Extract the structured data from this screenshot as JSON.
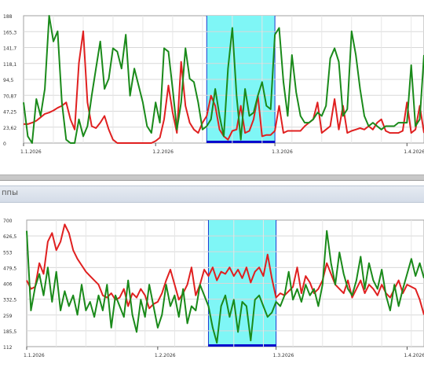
{
  "header": {
    "title": "ппы"
  },
  "chart_data": [
    {
      "type": "line",
      "x_tick_labels": [
        "1.1.2026",
        "1.2.2026",
        "1.3.2026",
        "1.4.2026"
      ],
      "x_ticks_day": [
        0,
        31,
        59,
        90
      ],
      "x_range_day": [
        0,
        94
      ],
      "y_tick_labels": [
        "188",
        "165,3",
        "141,7",
        "118,1",
        "94,5",
        "70,87",
        "47,25",
        "23,62",
        "0"
      ],
      "ylim": [
        0,
        188
      ],
      "grid": true,
      "highlight_day": [
        43,
        59
      ],
      "colors": {
        "red": "#e02020",
        "green": "#1a8a1a",
        "highlight": "#7ff6f6",
        "highlight_edge": "#1a3ad0"
      },
      "series": [
        {
          "color": "red",
          "values": [
            28,
            28,
            30,
            33,
            38,
            43,
            45,
            48,
            52,
            55,
            60,
            35,
            20,
            118,
            165,
            60,
            25,
            22,
            30,
            40,
            20,
            5,
            0,
            0,
            0,
            0,
            0,
            0,
            0,
            0,
            0,
            3,
            8,
            35,
            85,
            45,
            15,
            120,
            55,
            30,
            20,
            15,
            30,
            40,
            70,
            55,
            20,
            10,
            5,
            18,
            20,
            55,
            15,
            18,
            35,
            70,
            10,
            12,
            12,
            18,
            55,
            15,
            18,
            18,
            18,
            18,
            25,
            30,
            35,
            60,
            15,
            20,
            25,
            65,
            20,
            55,
            15,
            18,
            20,
            22,
            20,
            25,
            20,
            30,
            35,
            18,
            15,
            15,
            15,
            18,
            60,
            15,
            20,
            55,
            15
          ]
        },
        {
          "color": "green",
          "values": [
            60,
            10,
            0,
            65,
            40,
            80,
            188,
            150,
            165,
            60,
            5,
            0,
            0,
            35,
            10,
            25,
            70,
            110,
            150,
            80,
            95,
            140,
            135,
            110,
            160,
            70,
            110,
            85,
            60,
            25,
            15,
            60,
            30,
            140,
            135,
            80,
            20,
            60,
            140,
            95,
            90,
            60,
            20,
            25,
            35,
            80,
            40,
            10,
            110,
            170,
            70,
            5,
            80,
            40,
            45,
            70,
            90,
            55,
            50,
            160,
            170,
            90,
            40,
            130,
            75,
            40,
            30,
            30,
            35,
            45,
            40,
            55,
            125,
            140,
            120,
            40,
            50,
            165,
            130,
            80,
            40,
            25,
            30,
            25,
            20,
            25,
            25,
            25,
            30,
            30,
            30,
            115,
            25,
            35,
            130
          ]
        }
      ]
    },
    {
      "type": "line",
      "x_tick_labels": [
        "1.1.2026",
        "1.2.2026",
        "1.3.2026",
        "1.4.2026"
      ],
      "x_ticks_day": [
        0,
        31,
        59,
        90
      ],
      "x_range_day": [
        0,
        94
      ],
      "y_tick_labels": [
        "700",
        "626,5",
        "553",
        "479,5",
        "406",
        "332,5",
        "259",
        "185,5",
        "112"
      ],
      "ylim": [
        112,
        700
      ],
      "grid": true,
      "highlight_day": [
        43,
        59
      ],
      "colors": {
        "red": "#e02020",
        "green": "#1a8a1a",
        "highlight": "#7ff6f6",
        "highlight_edge": "#1a3ad0"
      },
      "series": [
        {
          "color": "red",
          "values": [
            420,
            380,
            390,
            500,
            450,
            600,
            640,
            560,
            600,
            680,
            640,
            560,
            520,
            490,
            460,
            440,
            420,
            400,
            350,
            340,
            360,
            330,
            340,
            380,
            300,
            360,
            340,
            380,
            350,
            290,
            310,
            320,
            360,
            420,
            470,
            400,
            330,
            360,
            400,
            480,
            350,
            400,
            470,
            440,
            480,
            420,
            460,
            450,
            480,
            440,
            470,
            430,
            480,
            410,
            460,
            480,
            440,
            540,
            430,
            340,
            360,
            350,
            370,
            390,
            480,
            360,
            440,
            410,
            360,
            380,
            420,
            500,
            450,
            400,
            380,
            360,
            420,
            340,
            380,
            420,
            360,
            400,
            380,
            350,
            400,
            360,
            340,
            380,
            420,
            360,
            400,
            390,
            380,
            330,
            260
          ]
        },
        {
          "color": "green",
          "values": [
            650,
            280,
            390,
            450,
            350,
            480,
            320,
            460,
            280,
            370,
            300,
            350,
            260,
            400,
            280,
            320,
            250,
            350,
            280,
            400,
            200,
            350,
            300,
            250,
            420,
            260,
            180,
            330,
            250,
            400,
            300,
            200,
            260,
            400,
            300,
            350,
            250,
            380,
            220,
            300,
            280,
            400,
            350,
            300,
            200,
            130,
            300,
            350,
            250,
            330,
            180,
            320,
            300,
            140,
            330,
            350,
            300,
            250,
            270,
            320,
            300,
            350,
            460,
            330,
            380,
            320,
            400,
            350,
            380,
            300,
            400,
            650,
            500,
            400,
            550,
            450,
            380,
            350,
            420,
            530,
            380,
            500,
            420,
            380,
            470,
            350,
            280,
            400,
            300,
            380,
            450,
            520,
            440,
            500,
            430
          ]
        }
      ]
    }
  ]
}
